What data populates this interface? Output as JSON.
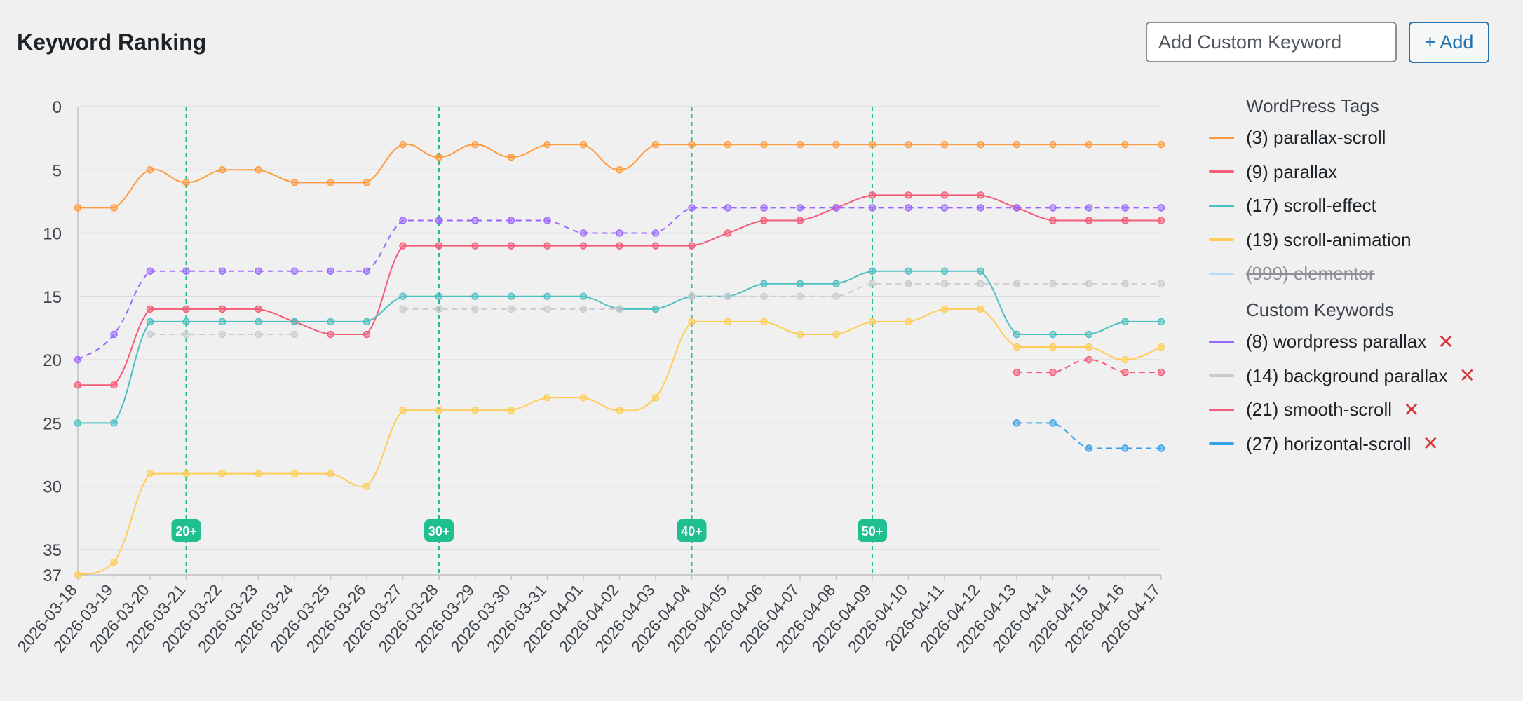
{
  "header": {
    "title": "Keyword Ranking",
    "input_placeholder": "Add Custom Keyword",
    "add_label": "+ Add"
  },
  "legend": {
    "groups": [
      {
        "header": "WordPress Tags",
        "items": [
          {
            "label": "(3) parallax-scroll",
            "series": "parallax-scroll",
            "color": "#ff9a3c",
            "hidden": false,
            "removable": false
          },
          {
            "label": "(9) parallax",
            "series": "parallax",
            "color": "#f45c78",
            "hidden": false,
            "removable": false
          },
          {
            "label": "(17) scroll-effect",
            "series": "scroll-effect",
            "color": "#4bc0c0",
            "hidden": false,
            "removable": false
          },
          {
            "label": "(19) scroll-animation",
            "series": "scroll-animation",
            "color": "#ffcd56",
            "hidden": false,
            "removable": false
          },
          {
            "label": "(999) elementor",
            "series": "elementor",
            "color": "#b6dcf5",
            "hidden": true,
            "removable": false
          }
        ]
      },
      {
        "header": "Custom Keywords",
        "items": [
          {
            "label": "(8) wordpress parallax",
            "series": "wordpress parallax",
            "color": "#9966ff",
            "hidden": false,
            "removable": true
          },
          {
            "label": "(14) background parallax",
            "series": "background parallax",
            "color": "#c9cbcf",
            "hidden": false,
            "removable": true
          },
          {
            "label": "(21) smooth-scroll",
            "series": "smooth-scroll",
            "color": "#f45c78",
            "hidden": false,
            "removable": true
          },
          {
            "label": "(27) horizontal-scroll",
            "series": "horizontal-scroll",
            "color": "#36a2eb",
            "hidden": false,
            "removable": true
          }
        ]
      }
    ],
    "remove_glyph": "✕"
  },
  "chart_data": {
    "type": "line",
    "x": [
      "2026-03-18",
      "2026-03-19",
      "2026-03-20",
      "2026-03-21",
      "2026-03-22",
      "2026-03-23",
      "2026-03-24",
      "2026-03-25",
      "2026-03-26",
      "2026-03-27",
      "2026-03-28",
      "2026-03-29",
      "2026-03-30",
      "2026-03-31",
      "2026-04-01",
      "2026-04-02",
      "2026-04-03",
      "2026-04-04",
      "2026-04-05",
      "2026-04-06",
      "2026-04-07",
      "2026-04-08",
      "2026-04-09",
      "2026-04-10",
      "2026-04-11",
      "2026-04-12",
      "2026-04-13",
      "2026-04-14",
      "2026-04-15",
      "2026-04-16",
      "2026-04-17"
    ],
    "y_reversed": true,
    "ylim": [
      0,
      37
    ],
    "yticks": [
      0,
      5,
      10,
      15,
      20,
      25,
      30,
      35,
      37
    ],
    "grid": true,
    "legend_position": "right",
    "series": [
      {
        "name": "(3) parallax-scroll",
        "color": "#ff9a3c",
        "dashed": false,
        "values": [
          8,
          8,
          5,
          6,
          5,
          5,
          6,
          6,
          6,
          3,
          4,
          3,
          4,
          3,
          3,
          5,
          3,
          3,
          3,
          3,
          3,
          3,
          3,
          3,
          3,
          3,
          3,
          3,
          3,
          3,
          3
        ]
      },
      {
        "name": "(9) parallax",
        "color": "#f45c78",
        "dashed": false,
        "values": [
          22,
          22,
          16,
          16,
          16,
          16,
          17,
          18,
          18,
          11,
          11,
          11,
          11,
          11,
          11,
          11,
          11,
          11,
          10,
          9,
          9,
          8,
          7,
          7,
          7,
          7,
          8,
          9,
          9,
          9,
          9
        ]
      },
      {
        "name": "(17) scroll-effect",
        "color": "#4bc0c0",
        "dashed": false,
        "values": [
          25,
          25,
          17,
          17,
          17,
          17,
          17,
          17,
          17,
          15,
          15,
          15,
          15,
          15,
          15,
          16,
          16,
          15,
          15,
          14,
          14,
          14,
          13,
          13,
          13,
          13,
          18,
          18,
          18,
          17,
          17
        ]
      },
      {
        "name": "(19) scroll-animation",
        "color": "#ffcd56",
        "dashed": false,
        "values": [
          37,
          36,
          29,
          29,
          29,
          29,
          29,
          29,
          30,
          24,
          24,
          24,
          24,
          23,
          23,
          24,
          23,
          17,
          17,
          17,
          18,
          18,
          17,
          17,
          16,
          16,
          19,
          19,
          19,
          20,
          19
        ]
      },
      {
        "name": "(8) wordpress parallax",
        "color": "#9966ff",
        "dashed": true,
        "values": [
          20,
          18,
          13,
          13,
          13,
          13,
          13,
          13,
          13,
          9,
          9,
          9,
          9,
          9,
          10,
          10,
          10,
          8,
          8,
          8,
          8,
          8,
          8,
          8,
          8,
          8,
          8,
          8,
          8,
          8,
          8
        ]
      },
      {
        "name": "(14) background parallax",
        "color": "#c9cbcf",
        "dashed": true,
        "values": [
          null,
          null,
          18,
          18,
          18,
          18,
          18,
          null,
          null,
          16,
          16,
          16,
          16,
          16,
          16,
          16,
          null,
          15,
          15,
          15,
          15,
          15,
          14,
          14,
          14,
          14,
          14,
          14,
          14,
          14,
          14
        ]
      },
      {
        "name": "(21) smooth-scroll",
        "color": "#f45c78",
        "dashed": true,
        "values": [
          null,
          null,
          null,
          null,
          null,
          null,
          null,
          null,
          null,
          null,
          null,
          null,
          null,
          null,
          null,
          null,
          null,
          null,
          null,
          null,
          null,
          null,
          null,
          null,
          null,
          null,
          21,
          21,
          20,
          21,
          21
        ]
      },
      {
        "name": "(27) horizontal-scroll",
        "color": "#36a2eb",
        "dashed": true,
        "values": [
          null,
          null,
          null,
          null,
          null,
          null,
          null,
          null,
          null,
          null,
          null,
          null,
          null,
          null,
          null,
          null,
          null,
          null,
          null,
          null,
          null,
          null,
          null,
          null,
          null,
          null,
          25,
          25,
          27,
          27,
          27
        ]
      }
    ],
    "markers": [
      {
        "x": "2026-03-21",
        "label": "20+"
      },
      {
        "x": "2026-03-28",
        "label": "30+"
      },
      {
        "x": "2026-04-04",
        "label": "40+"
      },
      {
        "x": "2026-04-09",
        "label": "50+"
      }
    ],
    "marker_color": "#1fbf8f"
  }
}
